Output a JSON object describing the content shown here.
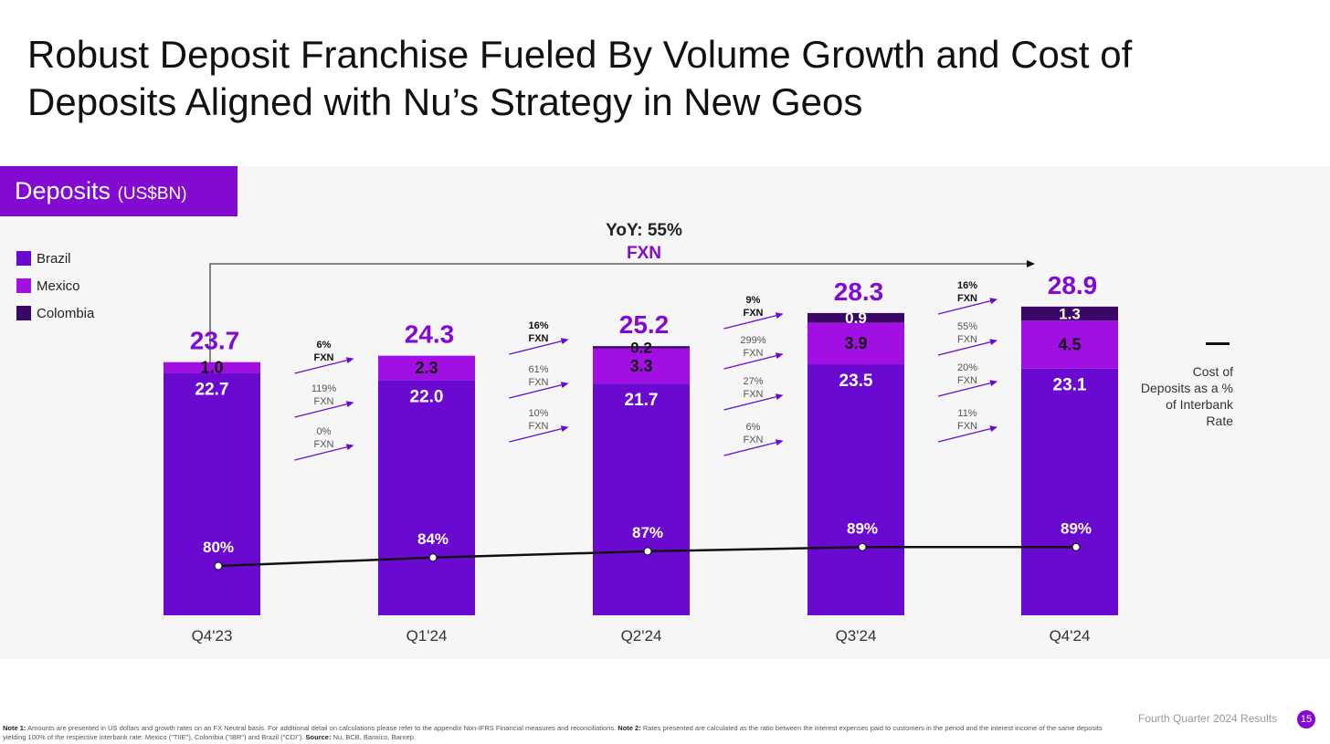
{
  "title_line1": "Robust Deposit Franchise Fueled By Volume Growth and Cost of",
  "title_line2": "Deposits Aligned with Nu’s Strategy in New Geos",
  "panel": {
    "label": "Deposits",
    "unit": "(US$BN)"
  },
  "legend": [
    {
      "name": "Brazil",
      "color": "#6a0ad1"
    },
    {
      "name": "Mexico",
      "color": "#a20fe3"
    },
    {
      "name": "Colombia",
      "color": "#3b0764"
    }
  ],
  "cost_legend": {
    "line1": "Cost of",
    "line2": "Deposits as a %",
    "line3": "of Interbank",
    "line4": "Rate"
  },
  "yoy": {
    "line1": "YoY: 55%",
    "line2": "FXN"
  },
  "chart_data": {
    "type": "bar",
    "stacked": true,
    "categories": [
      "Q4'23",
      "Q1'24",
      "Q2'24",
      "Q3'24",
      "Q4'24"
    ],
    "totals": [
      "23.7",
      "24.3",
      "25.2",
      "28.3",
      "28.9"
    ],
    "series": [
      {
        "name": "Brazil",
        "values": [
          22.7,
          22.0,
          21.7,
          23.5,
          23.1
        ],
        "labels": [
          "22.7",
          "22.0",
          "21.7",
          "23.5",
          "23.1"
        ]
      },
      {
        "name": "Mexico",
        "values": [
          1.0,
          2.3,
          3.3,
          3.9,
          4.5
        ],
        "labels": [
          "1.0",
          "2.3",
          "3.3",
          "3.9",
          "4.5"
        ]
      },
      {
        "name": "Colombia",
        "values": [
          0.0,
          0.0,
          0.2,
          0.9,
          1.3
        ],
        "labels": [
          "",
          "",
          "0.2",
          "0.9",
          "1.3"
        ]
      }
    ],
    "cost_of_deposits": {
      "values": [
        80,
        84,
        87,
        89,
        89
      ],
      "labels": [
        "80%",
        "84%",
        "87%",
        "89%",
        "89%"
      ]
    },
    "growth_annotations": [
      [
        {
          "pct": "6%",
          "unit": "FXN",
          "bold": true
        },
        {
          "pct": "119%",
          "unit": "FXN"
        },
        {
          "pct": "0%",
          "unit": "FXN"
        }
      ],
      [
        {
          "pct": "16%",
          "unit": "FXN",
          "bold": true
        },
        {
          "pct": "61%",
          "unit": "FXN"
        },
        {
          "pct": "10%",
          "unit": "FXN"
        }
      ],
      [
        {
          "pct": "9%",
          "unit": "FXN",
          "bold": true
        },
        {
          "pct": "299%",
          "unit": "FXN"
        },
        {
          "pct": "27%",
          "unit": "FXN"
        },
        {
          "pct": "6%",
          "unit": "FXN"
        }
      ],
      [
        {
          "pct": "16%",
          "unit": "FXN",
          "bold": true
        },
        {
          "pct": "55%",
          "unit": "FXN"
        },
        {
          "pct": "20%",
          "unit": "FXN"
        },
        {
          "pct": "11%",
          "unit": "FXN"
        }
      ]
    ]
  },
  "footer": {
    "note1_label": "Note 1:",
    "note1": "Amounts are presented in US dollars and growth rates on an FX Neutral basis. For additional detail on calculations please refer to the appendix Non-IFRS Financial measures and reconciliations.",
    "note2_label": "Note 2:",
    "note2": "Rates presented are calculated as the ratio between the interest expenses paid to customers in the period and the interest income of the same deposits yielding 100% of the respective interbank rate: Mexico (\"TIIE\"), Colombia (\"IBR\") and Brazil (\"CDI\").",
    "source_label": "Source:",
    "source": "Nu, BCB, Banxico, Banrep."
  },
  "page_label": "Fourth Quarter 2024 Results",
  "page_number": "15"
}
